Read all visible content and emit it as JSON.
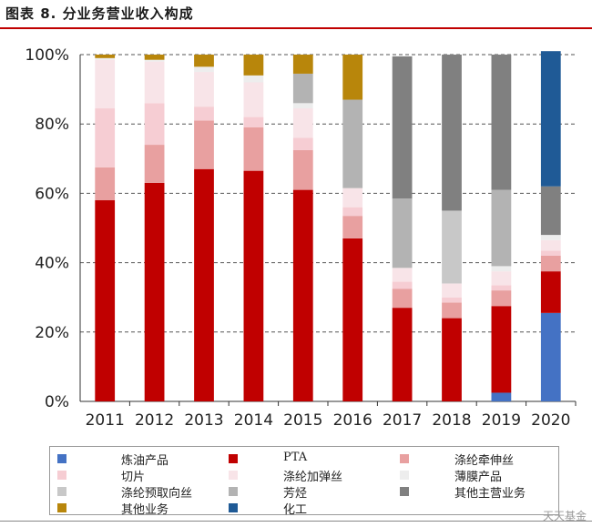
{
  "figure_title": "图表 8. 分业务营业收入构成",
  "chart_data": {
    "type": "bar",
    "stacked": true,
    "categories": [
      "2011",
      "2012",
      "2013",
      "2014",
      "2015",
      "2016",
      "2017",
      "2018",
      "2019",
      "2020"
    ],
    "y_ticks": [
      "0%",
      "20%",
      "40%",
      "60%",
      "80%",
      "100%"
    ],
    "ylim": [
      0,
      100
    ],
    "grid": true,
    "legend_position": "bottom",
    "series": [
      {
        "name": "炼油产品",
        "color": "#4472c4",
        "values": [
          0,
          0,
          0,
          0,
          0,
          0,
          0,
          0,
          2.5,
          25.5
        ]
      },
      {
        "name": "PTA",
        "color": "#c00000",
        "values": [
          58,
          63,
          67,
          66.5,
          61,
          47,
          27,
          24,
          25,
          12
        ]
      },
      {
        "name": "涤纶牵伸丝",
        "color": "#e8a0a0",
        "values": [
          9.5,
          11,
          14,
          12.5,
          11.5,
          6.5,
          5.5,
          4.5,
          4.5,
          4.5
        ]
      },
      {
        "name": "切片",
        "color": "#f6cdd3",
        "values": [
          17,
          12,
          4,
          3,
          3.5,
          2.5,
          2,
          1.5,
          1.5,
          1.5
        ]
      },
      {
        "name": "涤纶加弹丝",
        "color": "#f8e4e8",
        "values": [
          14,
          12,
          10,
          10,
          8.5,
          5.5,
          4,
          4,
          4,
          3
        ]
      },
      {
        "name": "薄膜产品",
        "color": "#ededed",
        "values": [
          0.5,
          0.5,
          1.5,
          2,
          1.5,
          0,
          0,
          0,
          1.5,
          1.5
        ]
      },
      {
        "name": "涤纶预取向丝",
        "color": "#c8c8c8",
        "values": [
          0,
          0,
          0,
          0,
          0,
          0,
          0,
          21,
          0,
          0
        ]
      },
      {
        "name": "芳烃",
        "color": "#b3b3b3",
        "values": [
          0,
          0,
          0,
          0,
          8.5,
          25.5,
          20,
          0,
          22,
          0
        ]
      },
      {
        "name": "其他主营业务",
        "color": "#808080",
        "values": [
          0,
          0,
          0,
          0,
          0,
          0,
          41,
          45,
          39,
          14
        ]
      },
      {
        "name": "其他业务",
        "color": "#b8860b",
        "values": [
          1,
          1.5,
          3.5,
          6,
          5.5,
          13,
          0,
          0,
          0,
          0
        ]
      },
      {
        "name": "化工",
        "color": "#1f5a96",
        "values": [
          0,
          0,
          0,
          0,
          0,
          0,
          0,
          0,
          0,
          39
        ]
      }
    ]
  },
  "watermark": "天天基金"
}
